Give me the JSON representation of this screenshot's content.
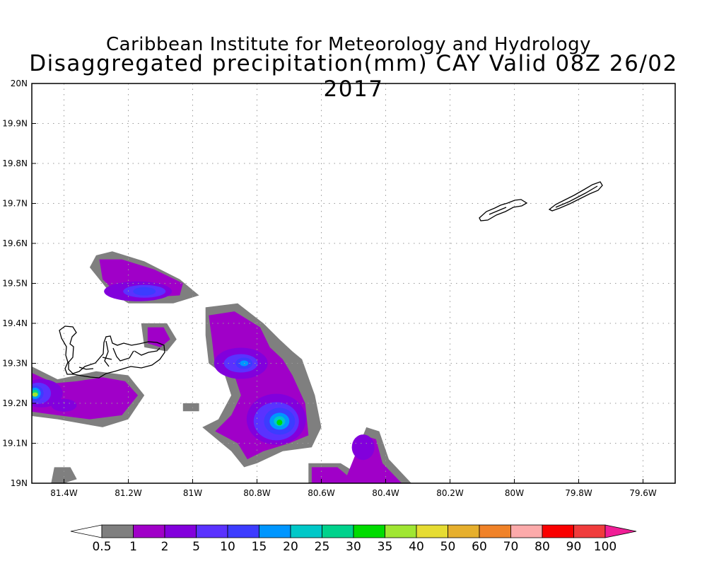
{
  "header": {
    "line1": "Caribbean Institute for Meteorology and Hydrology",
    "line2": "Disaggregated precipitation(mm) CAY Valid 08Z 26/02 2017"
  },
  "map": {
    "lon_range": [
      -81.5,
      -79.5
    ],
    "lat_range": [
      19.0,
      20.0
    ],
    "lon_ticks": [
      {
        "value": -81.4,
        "label": "81.4W"
      },
      {
        "value": -81.2,
        "label": "81.2W"
      },
      {
        "value": -81.0,
        "label": "81W"
      },
      {
        "value": -80.8,
        "label": "80.8W"
      },
      {
        "value": -80.6,
        "label": "80.6W"
      },
      {
        "value": -80.4,
        "label": "80.4W"
      },
      {
        "value": -80.2,
        "label": "80.2W"
      },
      {
        "value": -80.0,
        "label": "80W"
      },
      {
        "value": -79.8,
        "label": "79.8W"
      },
      {
        "value": -79.6,
        "label": "79.6W"
      }
    ],
    "lat_ticks": [
      {
        "value": 19.0,
        "label": "19N"
      },
      {
        "value": 19.1,
        "label": "19.1N"
      },
      {
        "value": 19.2,
        "label": "19.2N"
      },
      {
        "value": 19.3,
        "label": "19.3N"
      },
      {
        "value": 19.4,
        "label": "19.4N"
      },
      {
        "value": 19.5,
        "label": "19.5N"
      },
      {
        "value": 19.6,
        "label": "19.6N"
      },
      {
        "value": 19.7,
        "label": "19.7N"
      },
      {
        "value": 19.8,
        "label": "19.8N"
      },
      {
        "value": 19.9,
        "label": "19.9N"
      },
      {
        "value": 20.0,
        "label": "20N"
      }
    ],
    "grid": true,
    "precip_cells": [
      {
        "lon": -81.47,
        "lat": 19.225,
        "peak_mm": 35
      },
      {
        "lon": -81.15,
        "lat": 19.48,
        "peak_mm": 10
      },
      {
        "lon": -81.12,
        "lat": 19.37,
        "peak_mm": 2
      },
      {
        "lon": -80.85,
        "lat": 19.3,
        "peak_mm": 20
      },
      {
        "lon": -80.73,
        "lat": 19.15,
        "peak_mm": 35
      },
      {
        "lon": -80.47,
        "lat": 19.08,
        "peak_mm": 2
      }
    ]
  },
  "colorbar": {
    "colors": [
      "#7f7f7f",
      "#a000c8",
      "#8200dc",
      "#5a32ff",
      "#3c3cff",
      "#0096ff",
      "#00c8c8",
      "#00d28c",
      "#00dc00",
      "#a0e632",
      "#e6dc32",
      "#e6af2d",
      "#f08228",
      "#fcaaaa",
      "#fa0000",
      "#f03c3c",
      "#f01e96"
    ],
    "labels": [
      "0.5",
      "1",
      "2",
      "5",
      "10",
      "15",
      "20",
      "25",
      "30",
      "35",
      "40",
      "50",
      "60",
      "70",
      "80",
      "90",
      "100"
    ]
  }
}
